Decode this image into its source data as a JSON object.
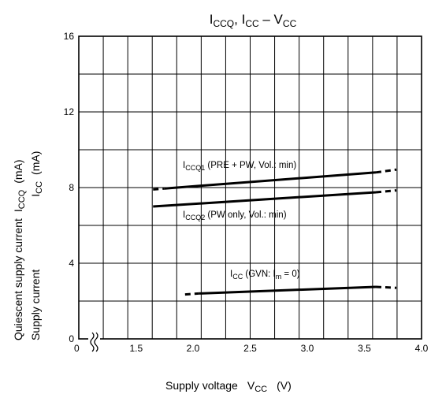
{
  "chart_data": {
    "type": "line",
    "title": {
      "main": "I",
      "sub1": "CCQ",
      "sep": ", I",
      "sub2": "CC",
      "dash": " – V",
      "sub3": "CC"
    },
    "xlabel": {
      "main": "Supply voltage",
      "v": "V",
      "sub": "CC",
      "unit": "(V)"
    },
    "ylabel": {
      "line1": "Quiescent supply current",
      "line1_sym": "I",
      "line1_sub": "CCQ",
      "line1_unit": "(mA)",
      "line2": "Supply current",
      "line2_sym": "I",
      "line2_sub": "CC",
      "line2_unit": "(mA)"
    },
    "xlim": [
      1.0,
      4.0
    ],
    "ylim": [
      0,
      16
    ],
    "x_ticks": [
      "0",
      "1.5",
      "2.0",
      "2.5",
      "3.0",
      "3.5",
      "4.0"
    ],
    "y_ticks": [
      "0",
      "4",
      "8",
      "12",
      "16"
    ],
    "axis_break": true,
    "grid": true,
    "series": [
      {
        "name": "ICCQ1 (PRE + PW, Vol.: min)",
        "label": {
          "main": "I",
          "sub": "CCQ1",
          "rest": " (PRE + PW, Vol.: min)"
        },
        "solid": [
          [
            1.75,
            7.95
          ],
          [
            3.6,
            8.8
          ]
        ],
        "dashed": [
          [
            1.65,
            7.9
          ],
          [
            1.75,
            7.95
          ],
          [
            3.6,
            8.8
          ],
          [
            3.78,
            8.95
          ]
        ]
      },
      {
        "name": "ICCQ2 (PW only, Vol.: min)",
        "label": {
          "main": "I",
          "sub": "CCQ2",
          "rest": " (PW only, Vol.: min)"
        },
        "solid": [
          [
            1.65,
            7.0
          ],
          [
            3.6,
            7.75
          ]
        ],
        "dashed": [
          [
            3.6,
            7.75
          ],
          [
            3.78,
            7.85
          ]
        ]
      },
      {
        "name": "ICC (GVN: Im = 0)",
        "label": {
          "main": "I",
          "sub": "CC",
          "rest": " (GVN: I",
          "sub2": "m",
          "rest2": " = 0)"
        },
        "solid": [
          [
            2.05,
            2.4
          ],
          [
            3.6,
            2.75
          ]
        ],
        "dashed": [
          [
            1.93,
            2.35
          ],
          [
            2.05,
            2.4
          ],
          [
            3.6,
            2.75
          ],
          [
            3.78,
            2.7
          ]
        ]
      }
    ]
  }
}
